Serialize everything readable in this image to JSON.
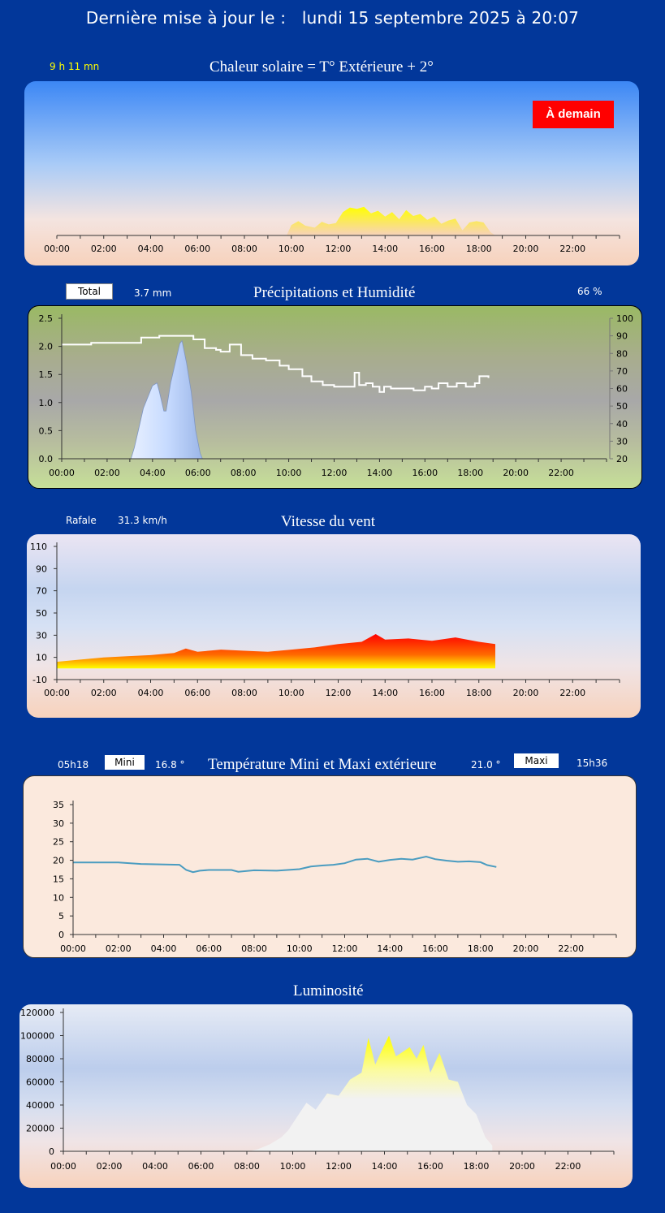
{
  "header": {
    "label": "Dernière mise à jour le :",
    "date": "lundi 15 septembre 2025 à 20:07"
  },
  "solar": {
    "title": "Chaleur solaire = T° Extérieure + 2°",
    "duration": "9 h 11 mn",
    "tomorrow_button": "À demain"
  },
  "rain": {
    "title": "Précipitations et Humidité",
    "total_label": "Total",
    "total_value": "3.7 mm",
    "humidity_value": "66 %"
  },
  "wind": {
    "title": "Vitesse du vent",
    "gust_label": "Rafale",
    "gust_value": "31.3 km/h"
  },
  "temp": {
    "title": "Température Mini et Maxi extérieure",
    "min_time": "05h18",
    "min_label": "Mini",
    "min_value": "16.8 °",
    "max_value": "21.0 °",
    "max_label": "Maxi",
    "max_time": "15h36"
  },
  "lum": {
    "title": "Luminosité"
  },
  "chart_data": [
    {
      "id": "solar",
      "type": "area",
      "x_ticks": [
        "00:00",
        "02:00",
        "04:00",
        "06:00",
        "08:00",
        "10:00",
        "12:00",
        "14:00",
        "16:00",
        "18:00",
        "20:00",
        "22:00"
      ],
      "x_range_hours": [
        0,
        24
      ],
      "y_range": [
        0,
        10
      ],
      "series": [
        {
          "color": "#ffff00",
          "x": [
            9.8,
            10.0,
            10.3,
            10.6,
            11.0,
            11.3,
            11.6,
            11.9,
            12.2,
            12.5,
            12.8,
            13.1,
            13.4,
            13.7,
            14.0,
            14.3,
            14.6,
            14.9,
            15.2,
            15.5,
            15.8,
            16.1,
            16.4,
            16.7,
            17.0,
            17.3,
            17.6,
            17.9,
            18.2,
            18.5,
            18.7
          ],
          "y": [
            0,
            1.6,
            2.2,
            1.5,
            1.2,
            2.1,
            1.7,
            1.9,
            3.6,
            4.3,
            4.1,
            4.4,
            3.4,
            3.8,
            2.9,
            3.6,
            2.5,
            3.9,
            3.0,
            3.3,
            2.4,
            2.9,
            1.8,
            2.3,
            2.6,
            0.8,
            2.0,
            2.2,
            2.0,
            0.5,
            0
          ]
        }
      ]
    },
    {
      "id": "rain",
      "type": "area+line",
      "x_ticks": [
        "00:00",
        "02:00",
        "04:00",
        "06:00",
        "08:00",
        "10:00",
        "12:00",
        "14:00",
        "16:00",
        "18:00",
        "20:00",
        "22:00"
      ],
      "x_range_hours": [
        0,
        24
      ],
      "y_ticks": [
        "2.5",
        "2.0",
        "1.5",
        "1.0",
        "0.5",
        "0.0"
      ],
      "y_range": [
        0,
        2.5
      ],
      "y2_ticks": [
        "100",
        "90",
        "80",
        "70",
        "60",
        "50",
        "40",
        "30",
        "20"
      ],
      "y2_range": [
        20,
        100
      ],
      "precipitation": {
        "color": "#cfe0ff",
        "x": [
          3.05,
          3.2,
          3.4,
          3.6,
          3.8,
          4.0,
          4.2,
          4.3,
          4.5,
          4.6,
          4.8,
          5.0,
          5.2,
          5.3,
          5.5,
          5.7,
          5.9,
          6.1,
          6.2
        ],
        "y": [
          0,
          0.2,
          0.55,
          0.9,
          1.1,
          1.3,
          1.35,
          1.2,
          0.85,
          0.85,
          1.35,
          1.7,
          2.05,
          2.1,
          1.7,
          1.2,
          0.5,
          0.1,
          0
        ]
      },
      "humidity": {
        "color": "#ffffff",
        "x": [
          0,
          1,
          1.3,
          1.6,
          3,
          3.5,
          4.3,
          5.2,
          5.8,
          6.3,
          6.8,
          7.0,
          7.4,
          7.9,
          8.4,
          9.0,
          9.6,
          10.0,
          10.6,
          11.0,
          11.5,
          12.0,
          12.5,
          12.9,
          13.1,
          13.4,
          13.7,
          14.0,
          14.2,
          14.5,
          15.0,
          15.5,
          16.0,
          16.3,
          16.6,
          17.0,
          17.4,
          17.8,
          18.2,
          18.4,
          18.8
        ],
        "y": [
          85,
          85,
          86,
          86,
          86,
          89,
          90,
          90,
          88,
          83,
          82,
          81,
          85,
          79,
          77,
          76,
          73,
          71,
          67,
          64,
          62,
          61,
          61,
          69,
          62,
          63,
          61,
          58,
          61,
          60,
          60,
          59,
          61,
          60,
          63,
          61,
          63,
          61,
          63,
          67,
          66
        ]
      }
    },
    {
      "id": "wind",
      "type": "area",
      "x_ticks": [
        "00:00",
        "02:00",
        "04:00",
        "06:00",
        "08:00",
        "10:00",
        "12:00",
        "14:00",
        "16:00",
        "18:00",
        "20:00",
        "22:00"
      ],
      "x_range_hours": [
        0,
        24
      ],
      "y_ticks": [
        "110",
        "90",
        "70",
        "50",
        "30",
        "10",
        "-10"
      ],
      "y_range": [
        -10,
        110
      ],
      "series": [
        {
          "colors": [
            "#ff0000",
            "#ffff00"
          ],
          "x": [
            0,
            1,
            2,
            3,
            4,
            5,
            5.5,
            6,
            7,
            8,
            9,
            10,
            11,
            12,
            13,
            13.6,
            14,
            15,
            16,
            17,
            18,
            18.7
          ],
          "y": [
            6,
            8,
            10,
            11,
            12,
            14,
            18,
            15,
            17,
            16,
            15,
            17,
            19,
            22,
            24,
            31,
            26,
            27,
            25,
            28,
            24,
            22
          ]
        }
      ]
    },
    {
      "id": "temp",
      "type": "line",
      "x_ticks": [
        "00:00",
        "02:00",
        "04:00",
        "06:00",
        "08:00",
        "10:00",
        "12:00",
        "14:00",
        "16:00",
        "18:00",
        "20:00",
        "22:00"
      ],
      "x_range_hours": [
        0,
        24
      ],
      "y_ticks": [
        "35",
        "30",
        "25",
        "20",
        "15",
        "10",
        "5",
        "0"
      ],
      "y_range": [
        0,
        35
      ],
      "series": [
        {
          "color": "#4a9cc0",
          "x": [
            0,
            2,
            3,
            4.7,
            5.0,
            5.3,
            5.6,
            6,
            7,
            7.3,
            8,
            9,
            10,
            10.5,
            11,
            11.5,
            12,
            12.5,
            13,
            13.5,
            14,
            14.5,
            15,
            15.6,
            16,
            16.5,
            17,
            17.5,
            18,
            18.3,
            18.7
          ],
          "y": [
            19.4,
            19.4,
            19.0,
            18.8,
            17.4,
            16.8,
            17.2,
            17.4,
            17.4,
            16.9,
            17.3,
            17.2,
            17.6,
            18.3,
            18.6,
            18.8,
            19.2,
            20.2,
            20.4,
            19.6,
            20.1,
            20.4,
            20.2,
            21.0,
            20.3,
            19.9,
            19.6,
            19.7,
            19.5,
            18.7,
            18.2
          ]
        }
      ]
    },
    {
      "id": "lum",
      "type": "area",
      "x_ticks": [
        "00:00",
        "02:00",
        "04:00",
        "06:00",
        "08:00",
        "10:00",
        "12:00",
        "14:00",
        "16:00",
        "18:00",
        "20:00",
        "22:00"
      ],
      "x_range_hours": [
        0,
        24
      ],
      "y_ticks": [
        "120000",
        "100000",
        "80000",
        "60000",
        "40000",
        "20000",
        "0"
      ],
      "y_range": [
        0,
        120000
      ],
      "series": [
        {
          "colors": [
            "#ffff00",
            "#f2f2f2"
          ],
          "x": [
            8.1,
            8.5,
            9.0,
            9.5,
            9.8,
            10.2,
            10.6,
            11.0,
            11.5,
            12.0,
            12.5,
            13.0,
            13.3,
            13.6,
            13.9,
            14.2,
            14.5,
            14.8,
            15.1,
            15.4,
            15.7,
            16.0,
            16.4,
            16.8,
            17.2,
            17.6,
            18.0,
            18.4,
            18.7
          ],
          "y": [
            0,
            2000,
            6000,
            12000,
            18000,
            30000,
            42000,
            36000,
            50000,
            48000,
            62000,
            68000,
            98000,
            75000,
            88000,
            100000,
            82000,
            86000,
            90000,
            80000,
            92000,
            68000,
            85000,
            62000,
            60000,
            40000,
            32000,
            12000,
            5000
          ]
        }
      ]
    }
  ]
}
